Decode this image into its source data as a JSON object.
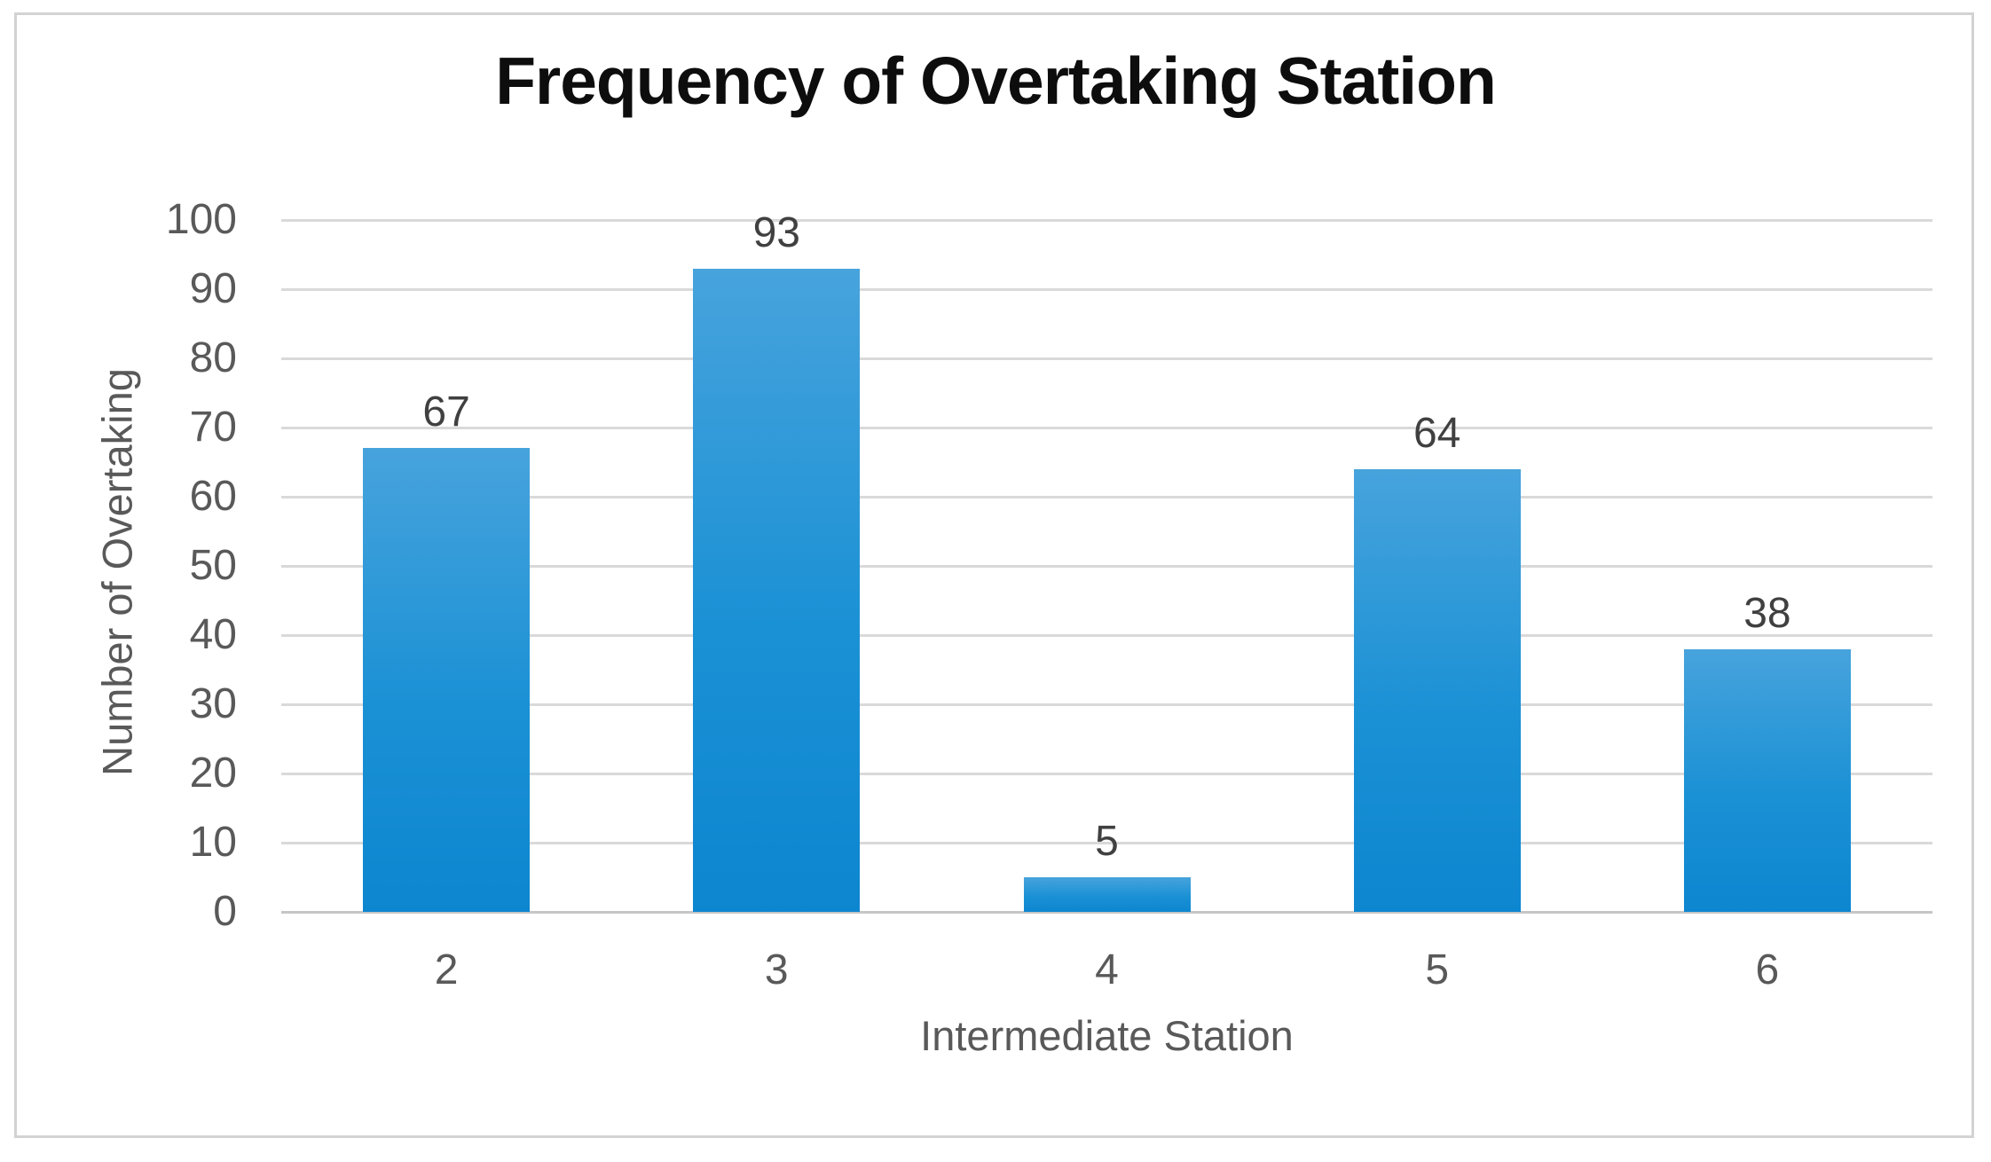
{
  "chart_data": {
    "type": "bar",
    "title": "Frequency of Overtaking Station",
    "xlabel": "Intermediate Station",
    "ylabel": "Number of Overtaking",
    "categories": [
      "2",
      "3",
      "4",
      "5",
      "6"
    ],
    "values": [
      67,
      93,
      5,
      64,
      38
    ],
    "data_labels": [
      "67",
      "93",
      "5",
      "64",
      "38"
    ],
    "ylim": [
      0,
      100
    ],
    "ytick_step": 10,
    "ytick_labels": [
      "0",
      "10",
      "20",
      "30",
      "40",
      "50",
      "60",
      "70",
      "80",
      "90",
      "100"
    ],
    "grid": true,
    "legend": "none",
    "colors": {
      "bar_gradient_top": "#47A3DC",
      "bar_gradient_mid": "#1B91D5",
      "bar_gradient_bottom": "#0D86D0",
      "gridline": "#D9D9D9",
      "baseline": "#C6C6C6",
      "axis_text": "#595959",
      "data_label_text": "#404040",
      "title_text": "#0D0D0D",
      "frame_border": "#D3D3D3"
    }
  }
}
